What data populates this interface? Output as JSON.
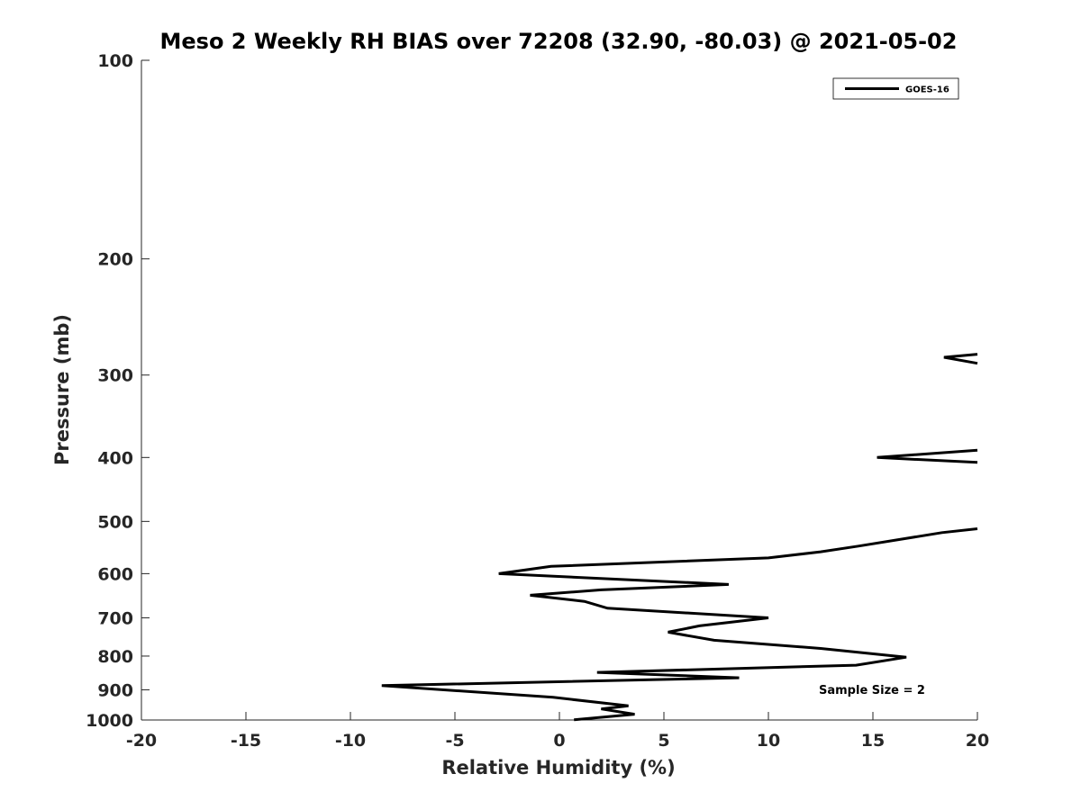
{
  "chart_data": {
    "type": "line",
    "title": "Meso 2 Weekly RH BIAS over 72208 (32.90, -80.03) @ 2021-05-02",
    "xlabel": "Relative Humidity (%)",
    "ylabel": "Pressure (mb)",
    "xlim": [
      -20,
      20
    ],
    "ylim": [
      100,
      1000
    ],
    "y_scale": "log",
    "y_reversed": true,
    "xticks": [
      -20,
      -15,
      -10,
      -5,
      0,
      5,
      10,
      15,
      20
    ],
    "yticks": [
      100,
      200,
      300,
      400,
      500,
      600,
      700,
      800,
      900,
      1000
    ],
    "grid": false,
    "legend_position": "top-right",
    "annotation": "Sample Size = 2",
    "series": [
      {
        "name": "GOES-16",
        "color": "#000000",
        "segments": [
          [
            {
              "x": 20,
              "y": 279
            },
            {
              "x": 18.4,
              "y": 282
            },
            {
              "x": 20,
              "y": 288
            }
          ],
          [
            {
              "x": 20,
              "y": 390
            },
            {
              "x": 15.2,
              "y": 400
            },
            {
              "x": 20,
              "y": 407
            }
          ],
          [
            {
              "x": 20,
              "y": 513
            },
            {
              "x": 18.3,
              "y": 520
            },
            {
              "x": 14.3,
              "y": 545
            },
            {
              "x": 12.5,
              "y": 556
            },
            {
              "x": 10,
              "y": 568
            },
            {
              "x": 5,
              "y": 576
            },
            {
              "x": -0.4,
              "y": 585
            },
            {
              "x": -2.9,
              "y": 600
            },
            {
              "x": 2.9,
              "y": 612
            },
            {
              "x": 8.1,
              "y": 623
            },
            {
              "x": 2,
              "y": 635
            },
            {
              "x": -1.4,
              "y": 647
            },
            {
              "x": 1.2,
              "y": 661
            },
            {
              "x": 2.3,
              "y": 677
            },
            {
              "x": 10,
              "y": 700
            },
            {
              "x": 6.7,
              "y": 720
            },
            {
              "x": 5.2,
              "y": 736
            },
            {
              "x": 7.4,
              "y": 757
            },
            {
              "x": 12.5,
              "y": 779
            },
            {
              "x": 16.6,
              "y": 803
            },
            {
              "x": 14.2,
              "y": 826
            },
            {
              "x": 1.8,
              "y": 847
            },
            {
              "x": 8.6,
              "y": 863
            },
            {
              "x": -8.5,
              "y": 887
            },
            {
              "x": -0.3,
              "y": 924
            },
            {
              "x": 3.3,
              "y": 952
            },
            {
              "x": 2,
              "y": 962
            },
            {
              "x": 3.6,
              "y": 980
            },
            {
              "x": 0.7,
              "y": 999
            }
          ]
        ]
      }
    ]
  }
}
